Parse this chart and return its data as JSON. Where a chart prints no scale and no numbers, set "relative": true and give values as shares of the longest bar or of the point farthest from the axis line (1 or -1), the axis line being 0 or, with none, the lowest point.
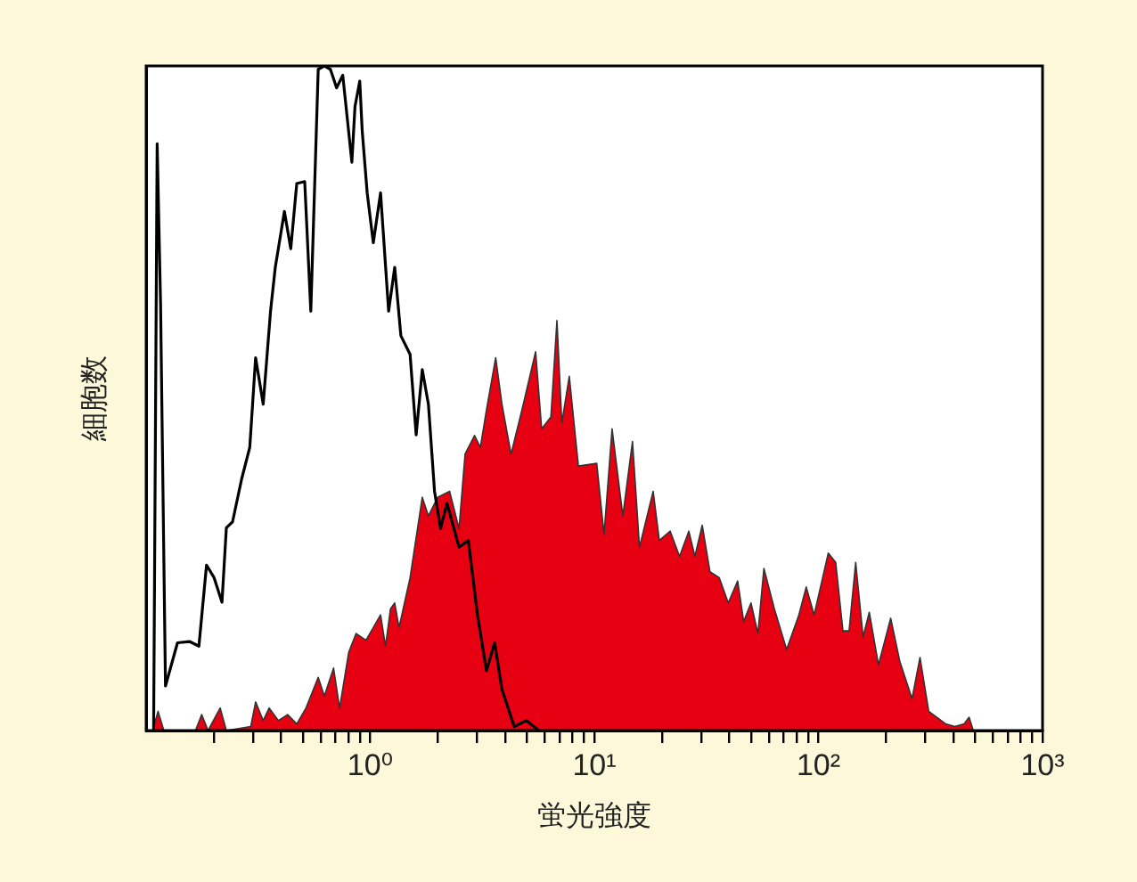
{
  "chart_data": {
    "type": "area",
    "relative": true,
    "xlabel": "蛍光強度",
    "ylabel": "細胞数",
    "log": "x",
    "legend": false,
    "grid": false,
    "tick_labels": "x",
    "marker": "none",
    "xlim": [
      0.1,
      1000
    ],
    "xticks": [
      {
        "value": 0.2,
        "label": null
      },
      {
        "value": 0.3,
        "label": null
      },
      {
        "value": 0.4,
        "label": null
      },
      {
        "value": 0.5,
        "label": null
      },
      {
        "value": 0.6,
        "label": null
      },
      {
        "value": 0.7,
        "label": null
      },
      {
        "value": 0.8,
        "label": null
      },
      {
        "value": 0.9,
        "label": null
      },
      {
        "value": 1,
        "label": "10⁰"
      },
      {
        "value": 2,
        "label": null
      },
      {
        "value": 3,
        "label": null
      },
      {
        "value": 4,
        "label": null
      },
      {
        "value": 5,
        "label": null
      },
      {
        "value": 6,
        "label": null
      },
      {
        "value": 7,
        "label": null
      },
      {
        "value": 8,
        "label": null
      },
      {
        "value": 9,
        "label": null
      },
      {
        "value": 10,
        "label": "10¹"
      },
      {
        "value": 20,
        "label": null
      },
      {
        "value": 30,
        "label": null
      },
      {
        "value": 40,
        "label": null
      },
      {
        "value": 50,
        "label": null
      },
      {
        "value": 60,
        "label": null
      },
      {
        "value": 70,
        "label": null
      },
      {
        "value": 80,
        "label": null
      },
      {
        "value": 90,
        "label": null
      },
      {
        "value": 100,
        "label": "10²"
      },
      {
        "value": 200,
        "label": null
      },
      {
        "value": 300,
        "label": null
      },
      {
        "value": 400,
        "label": null
      },
      {
        "value": 500,
        "label": null
      },
      {
        "value": 600,
        "label": null
      },
      {
        "value": 700,
        "label": null
      },
      {
        "value": 800,
        "label": null
      },
      {
        "value": 900,
        "label": null
      },
      {
        "value": 1000,
        "label": "10³"
      }
    ],
    "series": [
      {
        "type": "line",
        "color": "#000000",
        "x": [
          0.108,
          0.112,
          0.116,
          0.122,
          0.138,
          0.156,
          0.172,
          0.186,
          0.201,
          0.218,
          0.228,
          0.243,
          0.267,
          0.29,
          0.308,
          0.333,
          0.359,
          0.377,
          0.414,
          0.442,
          0.47,
          0.51,
          0.543,
          0.586,
          0.624,
          0.664,
          0.708,
          0.754,
          0.828,
          0.855,
          0.898,
          0.921,
          0.969,
          1.032,
          1.112,
          1.208,
          1.286,
          1.37,
          1.506,
          1.603,
          1.707,
          1.818,
          1.936,
          2.06,
          2.2,
          2.49,
          2.74,
          3.01,
          3.3,
          3.59,
          3.87,
          4.39,
          4.97,
          5.65
        ],
        "values": [
          0,
          0.883,
          0.641,
          0.067,
          0.132,
          0.134,
          0.127,
          0.249,
          0.23,
          0.193,
          0.305,
          0.314,
          0.379,
          0.426,
          0.561,
          0.491,
          0.631,
          0.697,
          0.781,
          0.725,
          0.823,
          0.826,
          0.631,
          0.995,
          1,
          0.995,
          0.967,
          0.986,
          0.855,
          0.939,
          0.977,
          0.902,
          0.809,
          0.734,
          0.809,
          0.631,
          0.697,
          0.594,
          0.566,
          0.445,
          0.543,
          0.491,
          0.36,
          0.304,
          0.342,
          0.276,
          0.286,
          0.174,
          0.09,
          0.132,
          0.062,
          0.006,
          0.015,
          0
        ]
      },
      {
        "type": "area",
        "color": "#e60012",
        "x": [
          0.107,
          0.113,
          0.12,
          0.166,
          0.177,
          0.189,
          0.214,
          0.228,
          0.293,
          0.308,
          0.333,
          0.354,
          0.389,
          0.428,
          0.47,
          0.517,
          0.586,
          0.624,
          0.686,
          0.73,
          0.802,
          0.865,
          0.957,
          1.032,
          1.112,
          1.17,
          1.231,
          1.286,
          1.344,
          1.506,
          1.707,
          1.818,
          2,
          2.26,
          2.49,
          2.65,
          2.92,
          3.1,
          3.3,
          3.63,
          3.87,
          4.25,
          4.82,
          5.47,
          5.82,
          6.4,
          6.81,
          7.16,
          7.73,
          8.49,
          10.25,
          11.05,
          12,
          13.4,
          14.8,
          15.9,
          18.3,
          19.5,
          21.8,
          24,
          26.4,
          28.1,
          30.3,
          32.8,
          36.1,
          39.6,
          43.6,
          46.4,
          50,
          53.7,
          57.1,
          63.6,
          72.1,
          81.8,
          88.2,
          95.7,
          110.6,
          119.4,
          128.6,
          137,
          146.6,
          158.2,
          168.6,
          185.3,
          210.1,
          230.8,
          261.6,
          283.9,
          310.5,
          370,
          406,
          447,
          470,
          491
        ],
        "values": [
          0,
          0.029,
          0,
          0,
          0.024,
          0,
          0.034,
          0,
          0.006,
          0.043,
          0.015,
          0.034,
          0.015,
          0.024,
          0.01,
          0.034,
          0.08,
          0.052,
          0.094,
          0.034,
          0.118,
          0.146,
          0.136,
          0.155,
          0.174,
          0.127,
          0.183,
          0.192,
          0.155,
          0.23,
          0.351,
          0.323,
          0.351,
          0.36,
          0.304,
          0.416,
          0.444,
          0.426,
          0.482,
          0.561,
          0.491,
          0.416,
          0.491,
          0.57,
          0.454,
          0.472,
          0.617,
          0.463,
          0.533,
          0.398,
          0.402,
          0.295,
          0.454,
          0.323,
          0.435,
          0.276,
          0.36,
          0.286,
          0.3,
          0.262,
          0.3,
          0.262,
          0.309,
          0.239,
          0.23,
          0.192,
          0.225,
          0.164,
          0.192,
          0.146,
          0.244,
          0.183,
          0.122,
          0.174,
          0.216,
          0.174,
          0.267,
          0.253,
          0.15,
          0.15,
          0.253,
          0.141,
          0.178,
          0.099,
          0.169,
          0.104,
          0.048,
          0.11,
          0.029,
          0.01,
          0.006,
          0.01,
          0.02,
          0
        ]
      }
    ]
  }
}
